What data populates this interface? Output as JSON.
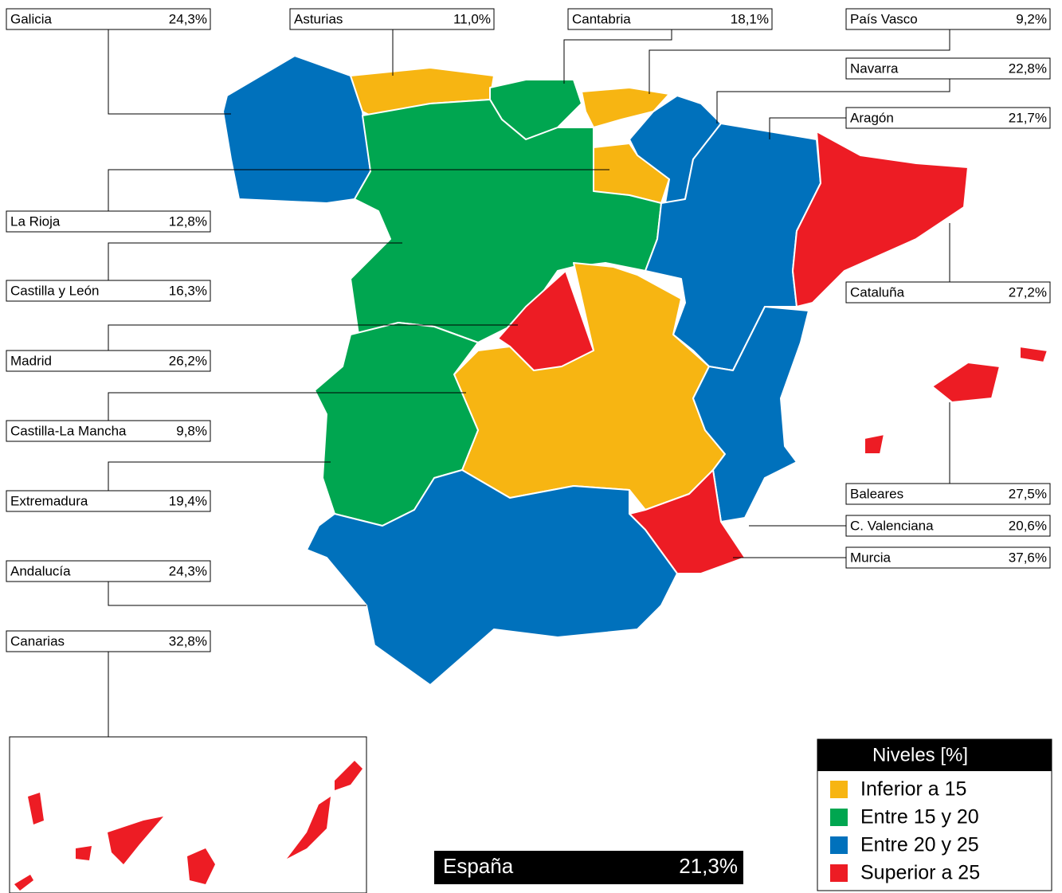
{
  "regions": [
    {
      "name": "Galicia",
      "value": "24,3%",
      "color": "#0071bc"
    },
    {
      "name": "Asturias",
      "value": "11,0%",
      "color": "#f7b512"
    },
    {
      "name": "Cantabria",
      "value": "18,1%",
      "color": "#00a650"
    },
    {
      "name": "País Vasco",
      "value": "9,2%",
      "color": "#f7b512"
    },
    {
      "name": "Navarra",
      "value": "22,8%",
      "color": "#0071bc"
    },
    {
      "name": "Aragón",
      "value": "21,7%",
      "color": "#0071bc"
    },
    {
      "name": "Cataluña",
      "value": "27,2%",
      "color": "#ed1c24"
    },
    {
      "name": "La Rioja",
      "value": "12,8%",
      "color": "#f7b512"
    },
    {
      "name": "Castilla y León",
      "value": "16,3%",
      "color": "#00a650"
    },
    {
      "name": "Madrid",
      "value": "26,2%",
      "color": "#ed1c24"
    },
    {
      "name": "Castilla-La Mancha",
      "value": "9,8%",
      "color": "#f7b512"
    },
    {
      "name": "Extremadura",
      "value": "19,4%",
      "color": "#00a650"
    },
    {
      "name": "Andalucía",
      "value": "24,3%",
      "color": "#0071bc"
    },
    {
      "name": "Canarias",
      "value": "32,8%",
      "color": "#ed1c24"
    },
    {
      "name": "Baleares",
      "value": "27,5%",
      "color": "#ed1c24"
    },
    {
      "name": "C. Valenciana",
      "value": "20,6%",
      "color": "#0071bc"
    },
    {
      "name": "Murcia",
      "value": "37,6%",
      "color": "#ed1c24"
    }
  ],
  "legend": {
    "title": "Niveles [%]",
    "levels": [
      {
        "label": "Inferior a 15",
        "color": "#f7b512"
      },
      {
        "label": "Entre 15 y 20",
        "color": "#00a650"
      },
      {
        "label": "Entre 20 y 25",
        "color": "#0071bc"
      },
      {
        "label": "Superior a 25",
        "color": "#ed1c24"
      }
    ]
  },
  "total": {
    "name": "España",
    "value": "21,3%"
  }
}
